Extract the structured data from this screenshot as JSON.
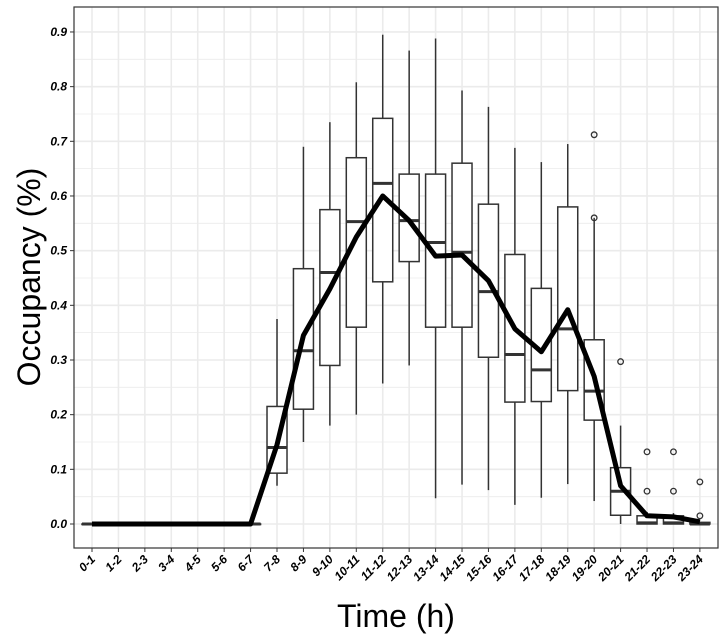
{
  "chart_data": {
    "type": "boxplot",
    "xlabel": "Time (h)",
    "ylabel": "Occupancy (%)",
    "ylim": [
      -0.04,
      0.94
    ],
    "yticks": [
      "0.0",
      "0.1",
      "0.2",
      "0.3",
      "0.4",
      "0.5",
      "0.6",
      "0.7",
      "0.8",
      "0.9"
    ],
    "grid": true,
    "categories": [
      "0-1",
      "1-2",
      "2-3",
      "3-4",
      "4-5",
      "5-6",
      "6-7",
      "7-8",
      "8-9",
      "9-10",
      "10-11",
      "11-12",
      "12-13",
      "13-14",
      "14-15",
      "15-16",
      "16-17",
      "17-18",
      "18-19",
      "19-20",
      "20-21",
      "21-22",
      "22-23",
      "23-24"
    ],
    "boxes": [
      {
        "low": 0,
        "q1": 0,
        "median": 0,
        "q3": 0,
        "high": 0,
        "outliers": []
      },
      {
        "low": 0,
        "q1": 0,
        "median": 0,
        "q3": 0,
        "high": 0,
        "outliers": []
      },
      {
        "low": 0,
        "q1": 0,
        "median": 0,
        "q3": 0,
        "high": 0,
        "outliers": []
      },
      {
        "low": 0,
        "q1": 0,
        "median": 0,
        "q3": 0,
        "high": 0,
        "outliers": []
      },
      {
        "low": 0,
        "q1": 0,
        "median": 0,
        "q3": 0,
        "high": 0,
        "outliers": []
      },
      {
        "low": 0,
        "q1": 0,
        "median": 0,
        "q3": 0,
        "high": 0,
        "outliers": []
      },
      {
        "low": 0,
        "q1": 0,
        "median": 0,
        "q3": 0,
        "high": 0,
        "outliers": []
      },
      {
        "low": 0.07,
        "q1": 0.093,
        "median": 0.14,
        "q3": 0.215,
        "high": 0.375,
        "outliers": []
      },
      {
        "low": 0.15,
        "q1": 0.21,
        "median": 0.317,
        "q3": 0.467,
        "high": 0.69,
        "outliers": []
      },
      {
        "low": 0.18,
        "q1": 0.29,
        "median": 0.46,
        "q3": 0.575,
        "high": 0.735,
        "outliers": []
      },
      {
        "low": 0.2,
        "q1": 0.36,
        "median": 0.553,
        "q3": 0.67,
        "high": 0.808,
        "outliers": []
      },
      {
        "low": 0.257,
        "q1": 0.443,
        "median": 0.623,
        "q3": 0.742,
        "high": 0.895,
        "outliers": []
      },
      {
        "low": 0.29,
        "q1": 0.48,
        "median": 0.555,
        "q3": 0.64,
        "high": 0.866,
        "outliers": []
      },
      {
        "low": 0.047,
        "q1": 0.36,
        "median": 0.515,
        "q3": 0.64,
        "high": 0.888,
        "outliers": []
      },
      {
        "low": 0.072,
        "q1": 0.36,
        "median": 0.497,
        "q3": 0.66,
        "high": 0.793,
        "outliers": []
      },
      {
        "low": 0.062,
        "q1": 0.305,
        "median": 0.425,
        "q3": 0.585,
        "high": 0.763,
        "outliers": []
      },
      {
        "low": 0.035,
        "q1": 0.223,
        "median": 0.31,
        "q3": 0.493,
        "high": 0.688,
        "outliers": []
      },
      {
        "low": 0.048,
        "q1": 0.224,
        "median": 0.282,
        "q3": 0.431,
        "high": 0.662,
        "outliers": []
      },
      {
        "low": 0.073,
        "q1": 0.244,
        "median": 0.357,
        "q3": 0.58,
        "high": 0.695,
        "outliers": []
      },
      {
        "low": 0.042,
        "q1": 0.19,
        "median": 0.243,
        "q3": 0.337,
        "high": 0.56,
        "outliers": [
          0.712,
          0.56
        ]
      },
      {
        "low": 0.0,
        "q1": 0.016,
        "median": 0.06,
        "q3": 0.103,
        "high": 0.18,
        "outliers": [
          0.297
        ]
      },
      {
        "low": 0,
        "q1": 0,
        "median": 0.002,
        "q3": 0.015,
        "high": 0.022,
        "outliers": [
          0.06,
          0.132
        ]
      },
      {
        "low": 0,
        "q1": 0,
        "median": 0.002,
        "q3": 0.015,
        "high": 0.02,
        "outliers": [
          0.06,
          0.132
        ]
      },
      {
        "low": 0,
        "q1": 0,
        "median": 0,
        "q3": 0.003,
        "high": 0.003,
        "outliers": [
          0.015,
          0.077
        ]
      }
    ],
    "mean_line": [
      0,
      0,
      0,
      0,
      0,
      0,
      0,
      0.145,
      0.345,
      0.43,
      0.525,
      0.6,
      0.555,
      0.49,
      0.492,
      0.445,
      0.357,
      0.315,
      0.392,
      0.27,
      0.07,
      0.015,
      0.013,
      0.004
    ],
    "colors": {
      "line": "#000000",
      "box": "#333333",
      "grid": "#ebebeb"
    }
  }
}
